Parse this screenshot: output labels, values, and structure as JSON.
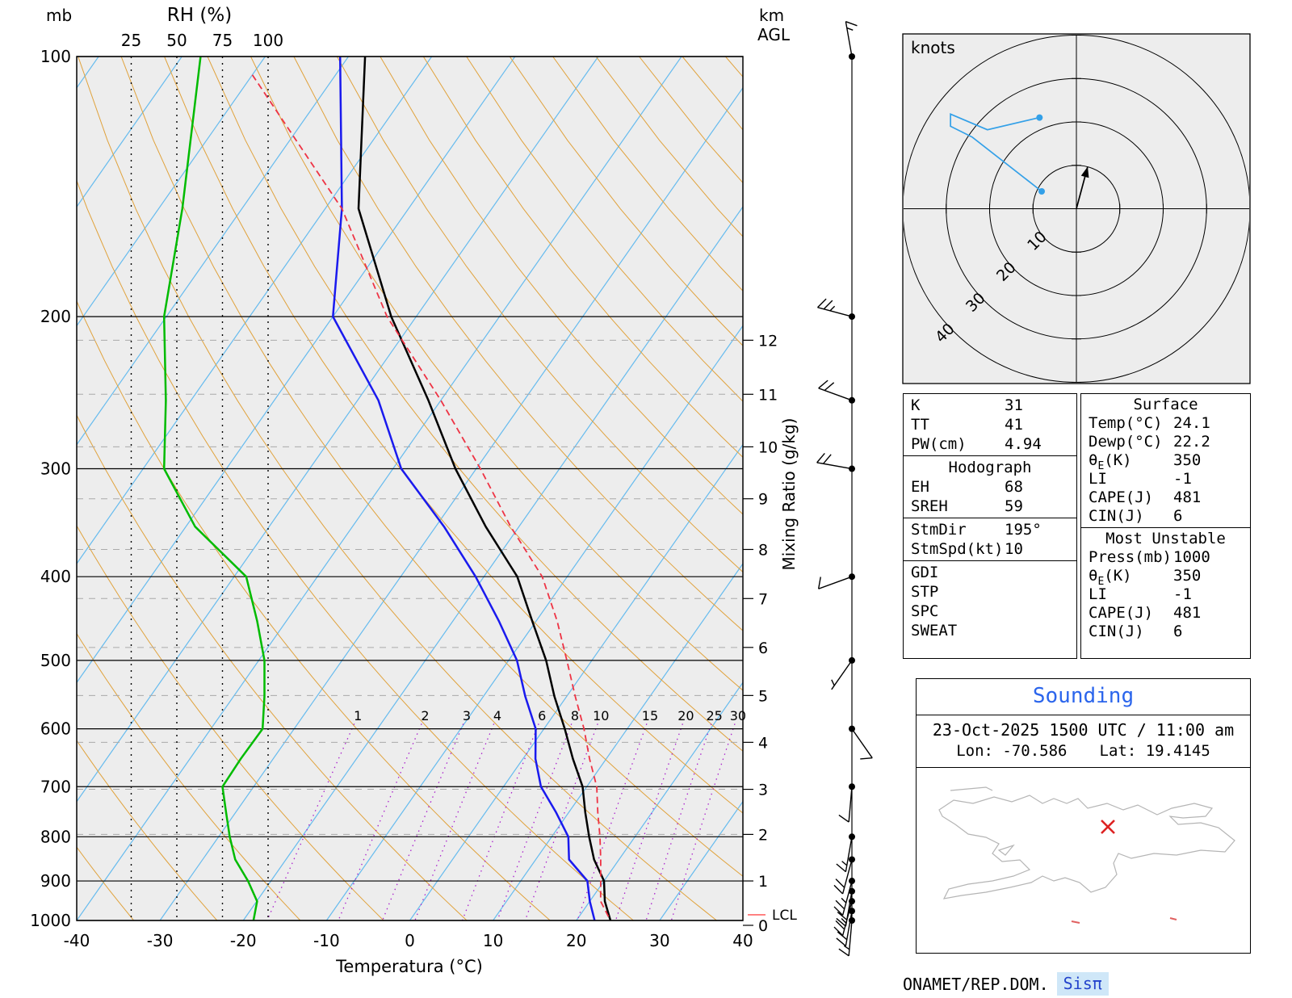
{
  "footer": {
    "agency": "ONAMET/REP.DOM.",
    "system": "Sisπ"
  },
  "colors": {
    "plot_bg": "#ededed",
    "temperature": "#000000",
    "dewpoint": "#1a1aee",
    "parcel": "#ee3344",
    "rh_profile": "#00bb00",
    "isotherm": "#66bbee",
    "dry_adiabat": "#e0a23c",
    "mixing_ratio": "#aa22cc",
    "km_line": "#aaaaaa",
    "hodo_trace": "#33a0e8",
    "lcl": "#ff6666",
    "map_outline": "#b5b5b5",
    "marker_red": "#dd2222"
  },
  "chart_data": {
    "type": "line",
    "x_axis": {
      "label": "Temperatura (°C)",
      "min": -40,
      "max": 40,
      "ticks": [
        -40,
        -30,
        -20,
        -10,
        0,
        10,
        20,
        30,
        40
      ]
    },
    "pressure_axis": {
      "label": "mb",
      "scale": "log",
      "ticks": [
        100,
        200,
        300,
        400,
        500,
        600,
        700,
        800,
        900,
        1000
      ]
    },
    "rh_axis": {
      "label": "RH (%)",
      "ticks": [
        25,
        50,
        75,
        100
      ]
    },
    "height_axis": {
      "label_line1": "km",
      "label_line2": "AGL",
      "ticks": [
        0,
        1,
        2,
        3,
        4,
        5,
        6,
        7,
        8,
        9,
        10,
        11,
        12
      ],
      "tick_pressures": [
        1013,
        900,
        795,
        705,
        622,
        549,
        483,
        424,
        372,
        325,
        283,
        246,
        213
      ]
    },
    "mixing_ratio_axis": {
      "label": "Mixing Ratio (g/kg)",
      "values": [
        1,
        2,
        3,
        4,
        6,
        8,
        10,
        15,
        20,
        25,
        30
      ]
    },
    "lcl": {
      "label": "LCL",
      "pressure": 985
    },
    "series": [
      {
        "name": "temperature",
        "color_key": "temperature",
        "points": [
          [
            100,
            -78
          ],
          [
            150,
            -66
          ],
          [
            200,
            -53
          ],
          [
            250,
            -41.5
          ],
          [
            300,
            -32.5
          ],
          [
            350,
            -24
          ],
          [
            400,
            -16
          ],
          [
            450,
            -10.5
          ],
          [
            500,
            -5.5
          ],
          [
            550,
            -1.5
          ],
          [
            600,
            2.5
          ],
          [
            650,
            6
          ],
          [
            700,
            9.5
          ],
          [
            750,
            12
          ],
          [
            800,
            14.5
          ],
          [
            850,
            17
          ],
          [
            900,
            20
          ],
          [
            950,
            21.8
          ],
          [
            1000,
            24.1
          ]
        ]
      },
      {
        "name": "dewpoint",
        "color_key": "dewpoint",
        "points": [
          [
            100,
            -81
          ],
          [
            150,
            -68
          ],
          [
            200,
            -60
          ],
          [
            250,
            -47.5
          ],
          [
            300,
            -39
          ],
          [
            350,
            -29
          ],
          [
            400,
            -21
          ],
          [
            450,
            -14.5
          ],
          [
            500,
            -9
          ],
          [
            550,
            -5
          ],
          [
            600,
            -1
          ],
          [
            650,
            1.5
          ],
          [
            700,
            4.5
          ],
          [
            750,
            8.5
          ],
          [
            800,
            12
          ],
          [
            850,
            14
          ],
          [
            900,
            18
          ],
          [
            950,
            20
          ],
          [
            1000,
            22.2
          ]
        ]
      },
      {
        "name": "parcel",
        "color_key": "parcel",
        "dashed": true,
        "points": [
          [
            105,
            -90
          ],
          [
            150,
            -68
          ],
          [
            200,
            -53.5
          ],
          [
            250,
            -40
          ],
          [
            300,
            -29.5
          ],
          [
            350,
            -21
          ],
          [
            400,
            -13
          ],
          [
            450,
            -7.5
          ],
          [
            500,
            -3
          ],
          [
            550,
            1
          ],
          [
            600,
            4.8
          ],
          [
            650,
            8
          ],
          [
            700,
            11.2
          ],
          [
            750,
            13.5
          ],
          [
            800,
            15.8
          ],
          [
            850,
            17.8
          ],
          [
            900,
            19.6
          ],
          [
            950,
            21.3
          ],
          [
            1000,
            24.1
          ]
        ]
      },
      {
        "name": "relative_humidity",
        "color_key": "rh_profile",
        "axis": "rh",
        "points": [
          [
            100,
            63
          ],
          [
            150,
            53
          ],
          [
            200,
            43
          ],
          [
            250,
            44
          ],
          [
            300,
            43
          ],
          [
            350,
            60
          ],
          [
            400,
            88
          ],
          [
            450,
            94
          ],
          [
            500,
            98
          ],
          [
            550,
            98
          ],
          [
            600,
            97
          ],
          [
            650,
            85
          ],
          [
            700,
            75
          ],
          [
            750,
            77
          ],
          [
            800,
            79
          ],
          [
            850,
            82
          ],
          [
            900,
            89
          ],
          [
            950,
            94
          ],
          [
            1000,
            92
          ]
        ]
      }
    ],
    "winds": {
      "units": "kt",
      "levels": [
        [
          100,
          350,
          15
        ],
        [
          200,
          285,
          25
        ],
        [
          250,
          290,
          20
        ],
        [
          300,
          280,
          20
        ],
        [
          400,
          250,
          10
        ],
        [
          500,
          215,
          5
        ],
        [
          600,
          145,
          10
        ],
        [
          700,
          185,
          10
        ],
        [
          800,
          190,
          15
        ],
        [
          850,
          195,
          20
        ],
        [
          900,
          195,
          25
        ],
        [
          925,
          190,
          20
        ],
        [
          950,
          195,
          25
        ],
        [
          975,
          190,
          20
        ],
        [
          1000,
          185,
          15
        ]
      ]
    },
    "hodograph": {
      "units_label": "knots",
      "rings": [
        10,
        20,
        30,
        40
      ],
      "trace_uv": [
        [
          -8,
          4
        ],
        [
          -24,
          16.5
        ],
        [
          -29,
          19
        ],
        [
          -29,
          21.8
        ],
        [
          -20.5,
          18.2
        ],
        [
          -8.5,
          21
        ]
      ],
      "dots_uv": [
        [
          -8,
          4
        ],
        [
          -8.5,
          21
        ]
      ],
      "storm_uv": [
        2.6,
        9.7
      ]
    }
  },
  "stats_left": {
    "sections": [
      {
        "rows": [
          {
            "label": "K",
            "value": "31"
          },
          {
            "label": "TT",
            "value": "41"
          },
          {
            "label": "PW(cm)",
            "value": "4.94"
          }
        ]
      },
      {
        "title": "Hodograph",
        "rows": [
          {
            "label": "EH",
            "value": "68"
          },
          {
            "label": "SREH",
            "value": "59"
          }
        ]
      },
      {
        "rows": [
          {
            "label": "StmDir",
            "value": "195°"
          },
          {
            "label": "StmSpd(kt)",
            "value": "10"
          }
        ]
      },
      {
        "rows": [
          {
            "label": "GDI",
            "value": ""
          },
          {
            "label": "STP",
            "value": ""
          },
          {
            "label": "SPC",
            "value": ""
          },
          {
            "label": "SWEAT",
            "value": ""
          }
        ]
      }
    ]
  },
  "stats_right": {
    "sections": [
      {
        "title": "Surface",
        "rows": [
          {
            "label": "Temp(°C)",
            "value": "24.1"
          },
          {
            "label": "Dewp(°C)",
            "value": "22.2"
          },
          {
            "label": "θ",
            "sub": "E",
            "label2": "(K)",
            "value": "350"
          },
          {
            "label": "LI",
            "value": "-1"
          },
          {
            "label": "CAPE(J)",
            "value": "481"
          },
          {
            "label": "CIN(J)",
            "value": "6"
          }
        ]
      },
      {
        "title": "Most Unstable",
        "rows": [
          {
            "label": "Press(mb)",
            "value": "1000"
          },
          {
            "label": "θ",
            "sub": "E",
            "label2": "(K)",
            "value": "350"
          },
          {
            "label": "LI",
            "value": "-1"
          },
          {
            "label": "CAPE(J)",
            "value": "481"
          },
          {
            "label": "CIN(J)",
            "value": "6"
          }
        ]
      }
    ]
  },
  "sounding_panel": {
    "title": "Sounding",
    "datetime": "23-Oct-2025 1500 UTC / 11:00 am",
    "lon_label": "Lon: -70.586",
    "lat_label": "Lat: 19.4145"
  }
}
